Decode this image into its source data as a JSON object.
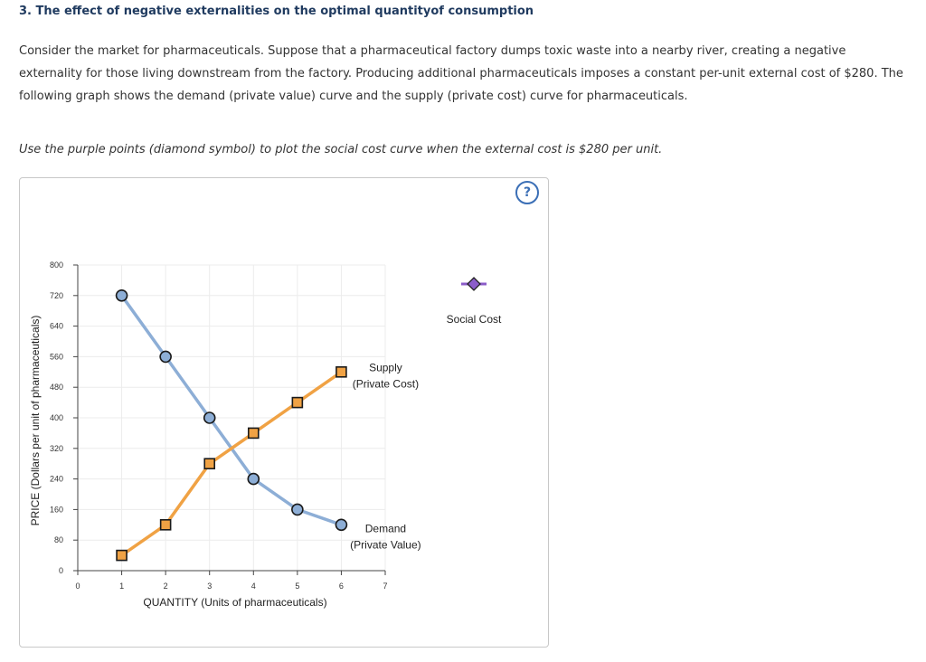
{
  "page": {
    "heading": "3. The effect of negative externalities on the optimal quantityof consumption",
    "paragraph": "Consider the market for pharmaceuticals. Suppose that a pharmaceutical factory dumps toxic waste into a nearby river, creating a negative externality for those living downstream from the factory. Producing additional pharmaceuticals imposes a constant per-unit external cost of $280. The following graph shows the demand (private value) curve and the supply (private cost) curve for pharmaceuticals.",
    "instruction": "Use the purple points (diamond symbol) to plot the social cost curve when the external cost is $280 per unit.",
    "help_symbol": "?"
  },
  "tool": {
    "label": "Social Cost",
    "marker": "diamond",
    "color": "#8b5cc9"
  },
  "chart_data": {
    "type": "line",
    "xlabel": "QUANTITY (Units of pharmaceuticals)",
    "ylabel": "PRICE (Dollars per unit of pharmaceuticals)",
    "xlim": [
      0,
      7
    ],
    "ylim": [
      0,
      800
    ],
    "xticks": [
      0,
      1,
      2,
      3,
      4,
      5,
      6,
      7
    ],
    "yticks": [
      0,
      80,
      160,
      240,
      320,
      400,
      480,
      560,
      640,
      720,
      800
    ],
    "grid": true,
    "series": [
      {
        "name_lines": [
          "Demand",
          "(Private Value)"
        ],
        "marker": "circle",
        "color": "#8daed6",
        "marker_fill": "#8daed6",
        "x": [
          1,
          2,
          3,
          4,
          5,
          6
        ],
        "y": [
          720,
          560,
          400,
          240,
          160,
          120
        ]
      },
      {
        "name_lines": [
          "Supply",
          "(Private Cost)"
        ],
        "marker": "square",
        "color": "#f0a244",
        "marker_fill": "#f0a244",
        "x": [
          1,
          2,
          3,
          4,
          5,
          6
        ],
        "y": [
          40,
          120,
          280,
          360,
          440,
          520
        ]
      }
    ]
  }
}
